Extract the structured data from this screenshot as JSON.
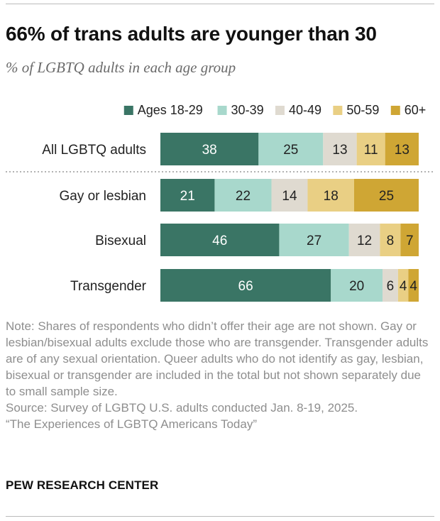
{
  "title": "66% of trans adults are younger than 30",
  "subtitle": "% of LGBTQ adults in each age group",
  "colors": {
    "ages_18_29": "#3a7565",
    "ages_30_39": "#a8d8cc",
    "ages_40_49": "#dfdad0",
    "ages_50_59": "#e9cf84",
    "ages_60_plus": "#cfa634",
    "light_label": "#ffffff",
    "dark_label": "#222222"
  },
  "chart_data": {
    "type": "bar",
    "orientation": "horizontal",
    "stacked": true,
    "categories": [
      "All LGBTQ adults",
      "Gay or lesbian",
      "Bisexual",
      "Transgender"
    ],
    "series": [
      {
        "name": "Ages 18-29",
        "values": [
          38,
          21,
          46,
          66
        ]
      },
      {
        "name": "30-39",
        "values": [
          25,
          22,
          27,
          20
        ]
      },
      {
        "name": "40-49",
        "values": [
          13,
          14,
          12,
          6
        ]
      },
      {
        "name": "50-59",
        "values": [
          11,
          18,
          8,
          4
        ]
      },
      {
        "name": "60+",
        "values": [
          13,
          25,
          7,
          4
        ]
      }
    ],
    "xlim": [
      0,
      100
    ],
    "legend": "top",
    "separator_after": "All LGBTQ adults"
  },
  "note": {
    "text": "Note: Shares of respondents who didn’t offer their age are not shown. Gay or lesbian/bisexual adults exclude those who are transgender. Transgender adults are of any sexual orientation. Queer adults who do not identify as gay, lesbian, bisexual or transgender are included in the total but not shown separately due to small sample size.",
    "source": "Source: Survey of LGBTQ U.S. adults conducted Jan. 8-19, 2025.",
    "report": "“The Experiences of LGBTQ Americans Today”"
  },
  "brand": "PEW RESEARCH CENTER"
}
